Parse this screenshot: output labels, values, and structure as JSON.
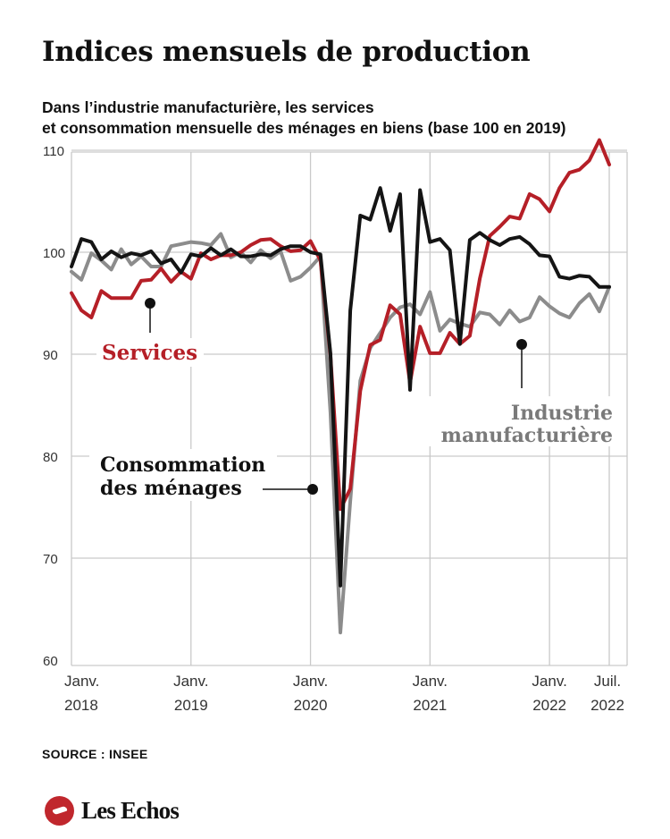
{
  "header": {
    "title": "Indices mensuels de production",
    "subtitle_line1": "Dans l’industrie manufacturière, les services",
    "subtitle_line2": "et consommation mensuelle des ménages en biens (base 100 en 2019)"
  },
  "footer": {
    "source": "SOURCE : INSEE",
    "logo_text": "Les Echos",
    "logo_icon": "les-echos-logo-icon"
  },
  "chart_data": {
    "type": "line",
    "x_start": "2018-01",
    "x_end": "2022-07",
    "x_ticks": [
      {
        "month": "2018-01",
        "line1": "Janv.",
        "line2": "2018"
      },
      {
        "month": "2019-01",
        "line1": "Janv.",
        "line2": "2019"
      },
      {
        "month": "2020-01",
        "line1": "Janv.",
        "line2": "2020"
      },
      {
        "month": "2021-01",
        "line1": "Janv.",
        "line2": "2021"
      },
      {
        "month": "2022-01",
        "line1": "Janv.",
        "line2": "2022"
      },
      {
        "month": "2022-07",
        "line1": "Juil.",
        "line2": "2022"
      }
    ],
    "ylim": [
      60,
      111
    ],
    "yticks": [
      60,
      70,
      80,
      90,
      100,
      110
    ],
    "grid": true,
    "series": [
      {
        "name": "Industrie manufacturière",
        "label_lines": [
          "Industrie",
          "manufacturière"
        ],
        "color": "#8c8c8c",
        "values": [
          98.1,
          97.3,
          99.9,
          99.2,
          98.3,
          100.3,
          98.8,
          99.6,
          98.6,
          98.6,
          100.6,
          100.8,
          101.0,
          100.9,
          100.7,
          101.8,
          99.5,
          100.0,
          99.0,
          100.2,
          99.4,
          100.1,
          97.2,
          97.6,
          98.5,
          99.6,
          84.3,
          62.7,
          75.6,
          87.4,
          90.6,
          92.1,
          93.6,
          94.6,
          94.9,
          93.9,
          96.1,
          92.3,
          93.4,
          93.0,
          92.7,
          94.1,
          93.9,
          92.9,
          94.3,
          93.2,
          93.6,
          95.6,
          94.7,
          94.0,
          93.6,
          95.0,
          95.9,
          94.2,
          96.6
        ]
      },
      {
        "name": "Services",
        "label_lines": [
          "Services"
        ],
        "color": "#b51f27",
        "values": [
          96.0,
          94.3,
          93.6,
          96.2,
          95.5,
          95.5,
          95.5,
          97.2,
          97.3,
          98.4,
          97.1,
          98.1,
          97.4,
          99.9,
          99.3,
          99.7,
          99.7,
          100.0,
          100.7,
          101.2,
          101.3,
          100.6,
          100.1,
          100.2,
          101.1,
          99.2,
          89.9,
          74.8,
          76.8,
          86.4,
          90.9,
          91.4,
          94.8,
          93.9,
          87.2,
          92.7,
          90.1,
          90.1,
          92.1,
          91.0,
          91.8,
          97.4,
          101.6,
          102.5,
          103.5,
          103.3,
          105.7,
          105.2,
          104.0,
          106.3,
          107.8,
          108.1,
          109.0,
          111.0,
          108.6
        ]
      },
      {
        "name": "Consommation des ménages",
        "label_lines": [
          "Consommation",
          "des ménages"
        ],
        "color": "#141414",
        "values": [
          98.6,
          101.3,
          101.0,
          99.3,
          100.1,
          99.5,
          99.9,
          99.7,
          100.1,
          98.9,
          99.3,
          98.0,
          99.8,
          99.6,
          100.4,
          99.7,
          100.3,
          99.6,
          99.6,
          99.8,
          99.7,
          100.3,
          100.6,
          100.6,
          100.0,
          99.8,
          90.1,
          67.3,
          94.3,
          103.6,
          103.2,
          106.3,
          102.1,
          105.7,
          86.5,
          106.1,
          101.0,
          101.3,
          100.2,
          91.0,
          101.2,
          101.9,
          101.2,
          100.7,
          101.3,
          101.5,
          100.8,
          99.7,
          99.6,
          97.6,
          97.4,
          97.7,
          97.6,
          96.6,
          96.6
        ]
      }
    ]
  }
}
